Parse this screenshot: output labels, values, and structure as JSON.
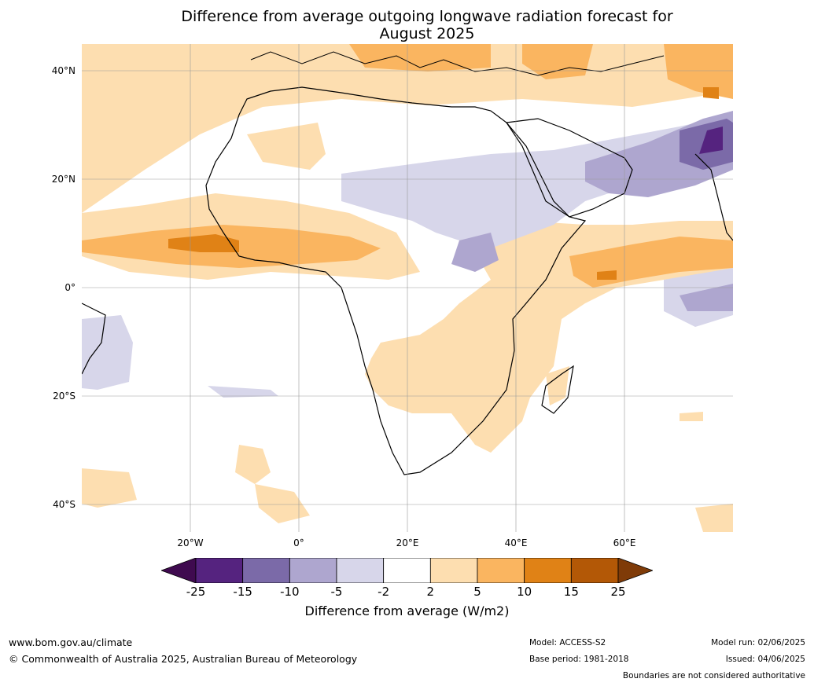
{
  "title_line1": "Difference from average outgoing longwave radiation forecast for",
  "title_line2": "August 2025",
  "lat_labels": [
    "40°N",
    "20°N",
    "0°",
    "20°S",
    "40°S"
  ],
  "lon_labels": [
    "20°W",
    "0°",
    "20°E",
    "40°E",
    "60°E"
  ],
  "colorbar": {
    "title": "Difference from average (W/m2)",
    "ticks": [
      "-25",
      "-15",
      "-10",
      "-5",
      "-2",
      "2",
      "5",
      "10",
      "15",
      "25"
    ],
    "colors": [
      "#3f0a4f",
      "#55237f",
      "#7b6aa8",
      "#aea6cf",
      "#d7d6ea",
      "#ffffff",
      "#fddeb0",
      "#fab560",
      "#e08216",
      "#b35806",
      "#7f3b08"
    ]
  },
  "footer": {
    "website": "www.bom.gov.au/climate",
    "copyright": "© Commonwealth of Australia 2025, Australian Bureau of Meteorology",
    "model": "Model: ACCESS-S2",
    "base_period": "Base period: 1981-2018",
    "model_run": "Model run: 02/06/2025",
    "issued": "Issued: 04/06/2025",
    "disclaimer": "Boundaries are not considered authoritative"
  }
}
